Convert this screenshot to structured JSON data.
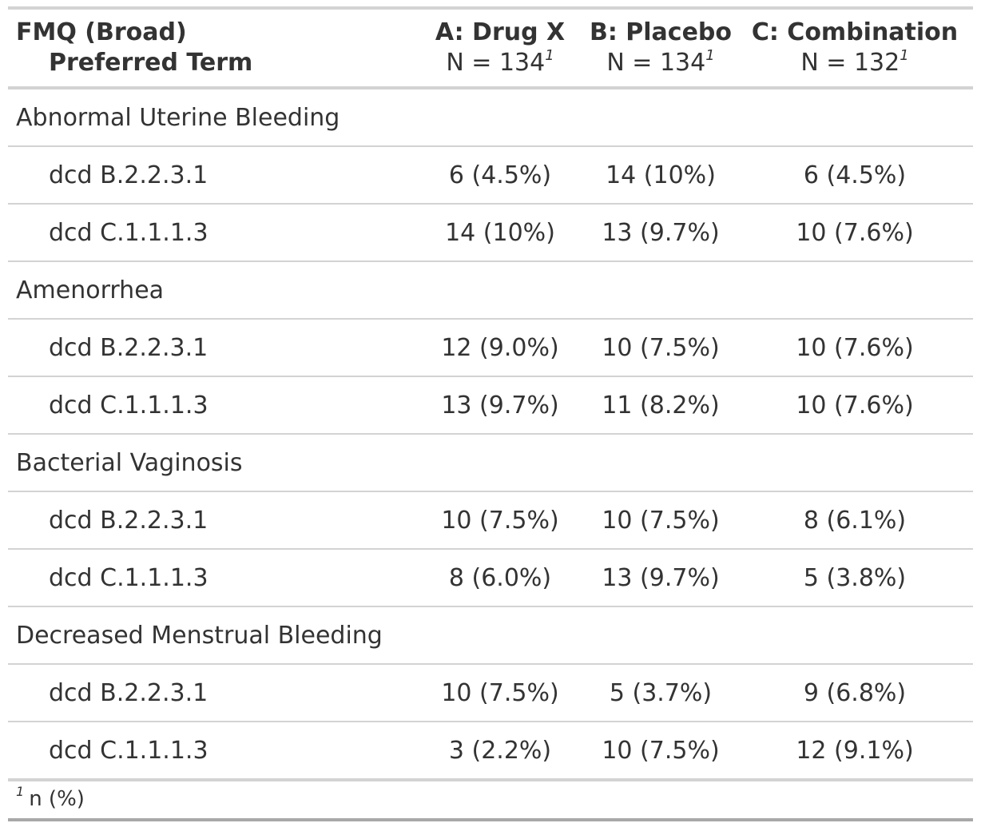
{
  "header": {
    "label_line1": "FMQ (Broad)",
    "label_line2": "Preferred Term",
    "arms": [
      {
        "name": "A: Drug X",
        "n": "N = 134",
        "footnote_mark": "1"
      },
      {
        "name": "B: Placebo",
        "n": "N = 134",
        "footnote_mark": "1"
      },
      {
        "name": "C: Combination",
        "n": "N = 132",
        "footnote_mark": "1"
      }
    ]
  },
  "groups": [
    {
      "label": "Abnormal Uterine Bleeding",
      "rows": [
        {
          "term": "dcd B.2.2.3.1",
          "values": [
            "6 (4.5%)",
            "14 (10%)",
            "6 (4.5%)"
          ]
        },
        {
          "term": "dcd C.1.1.1.3",
          "values": [
            "14 (10%)",
            "13 (9.7%)",
            "10 (7.6%)"
          ]
        }
      ]
    },
    {
      "label": "Amenorrhea",
      "rows": [
        {
          "term": "dcd B.2.2.3.1",
          "values": [
            "12 (9.0%)",
            "10 (7.5%)",
            "10 (7.6%)"
          ]
        },
        {
          "term": "dcd C.1.1.1.3",
          "values": [
            "13 (9.7%)",
            "11 (8.2%)",
            "10 (7.6%)"
          ]
        }
      ]
    },
    {
      "label": "Bacterial Vaginosis",
      "rows": [
        {
          "term": "dcd B.2.2.3.1",
          "values": [
            "10 (7.5%)",
            "10 (7.5%)",
            "8 (6.1%)"
          ]
        },
        {
          "term": "dcd C.1.1.1.3",
          "values": [
            "8 (6.0%)",
            "13 (9.7%)",
            "5 (3.8%)"
          ]
        }
      ]
    },
    {
      "label": "Decreased Menstrual Bleeding",
      "rows": [
        {
          "term": "dcd B.2.2.3.1",
          "values": [
            "10 (7.5%)",
            "5 (3.7%)",
            "9 (6.8%)"
          ]
        },
        {
          "term": "dcd C.1.1.1.3",
          "values": [
            "3 (2.2%)",
            "10 (7.5%)",
            "12 (9.1%)"
          ]
        }
      ]
    }
  ],
  "footnote": {
    "mark": "1",
    "text": "n (%)"
  }
}
